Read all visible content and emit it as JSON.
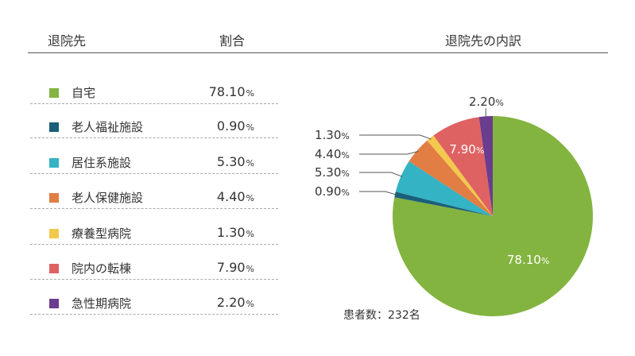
{
  "header": {
    "destination": "退院先",
    "ratio": "割合",
    "breakdown": "退院先の内訳"
  },
  "patients": "患者数：232名",
  "pct_unit": "%",
  "chart_data": {
    "type": "pie",
    "title": "退院先の内訳",
    "categories": [
      "自宅",
      "老人福祉施設",
      "居住系施設",
      "老人保健施設",
      "療養型病院",
      "院内の転棟",
      "急性期病院"
    ],
    "values": [
      78.1,
      0.9,
      5.3,
      4.4,
      1.3,
      7.9,
      2.2
    ],
    "value_labels": [
      "78.10",
      "0.90",
      "5.30",
      "4.40",
      "1.30",
      "7.90",
      "2.20"
    ],
    "colors": [
      "#84b440",
      "#1a5f7a",
      "#33b3c3",
      "#e27d43",
      "#f2c94c",
      "#df6263",
      "#6a3d8e"
    ]
  }
}
